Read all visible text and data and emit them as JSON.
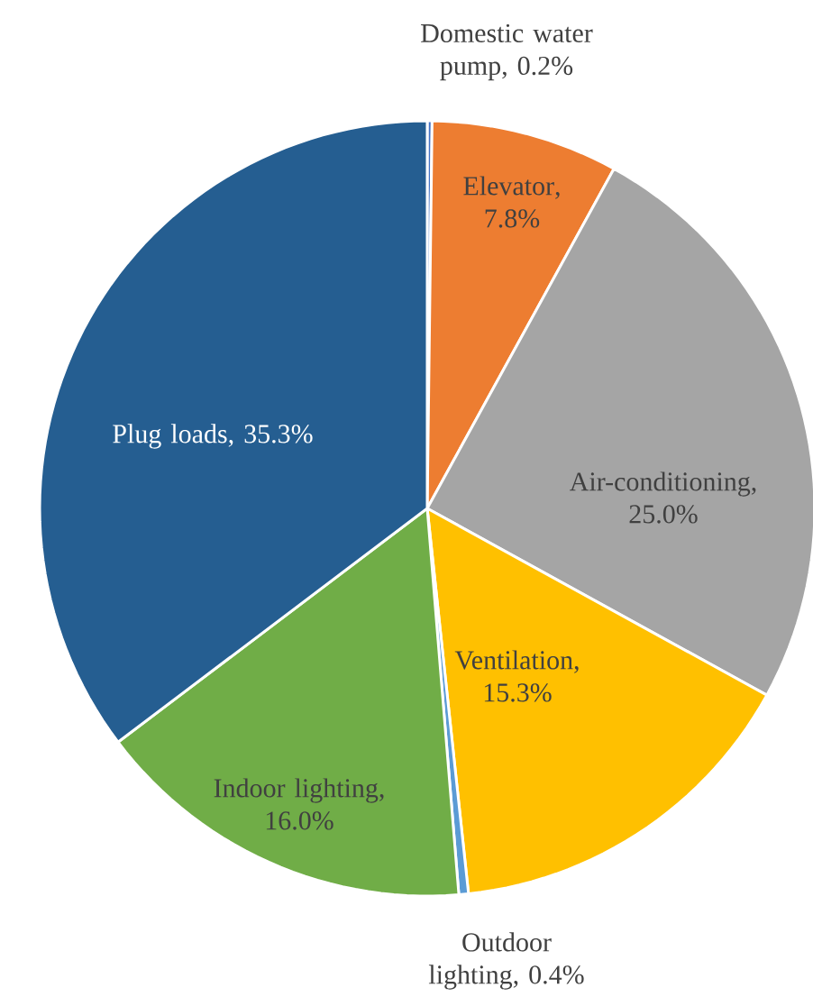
{
  "chart_data": {
    "type": "pie",
    "categories": [
      "Domestic water pump",
      "Elevator",
      "Air-conditioning",
      "Ventilation",
      "Outdoor lighting",
      "Indoor lighting",
      "Plug loads"
    ],
    "values": [
      0.2,
      7.8,
      25.0,
      15.3,
      0.4,
      16.0,
      35.3
    ],
    "colors": [
      "#4472c4",
      "#ed7d31",
      "#a5a5a5",
      "#ffc000",
      "#5b9bd5",
      "#70ad47",
      "#255e91"
    ],
    "value_labels": [
      ", 0.2%",
      ", 7.8%",
      ", 25.0%",
      ", 15.3%",
      ", 0.4%",
      ", 16.0%",
      ", 35.3%"
    ]
  }
}
